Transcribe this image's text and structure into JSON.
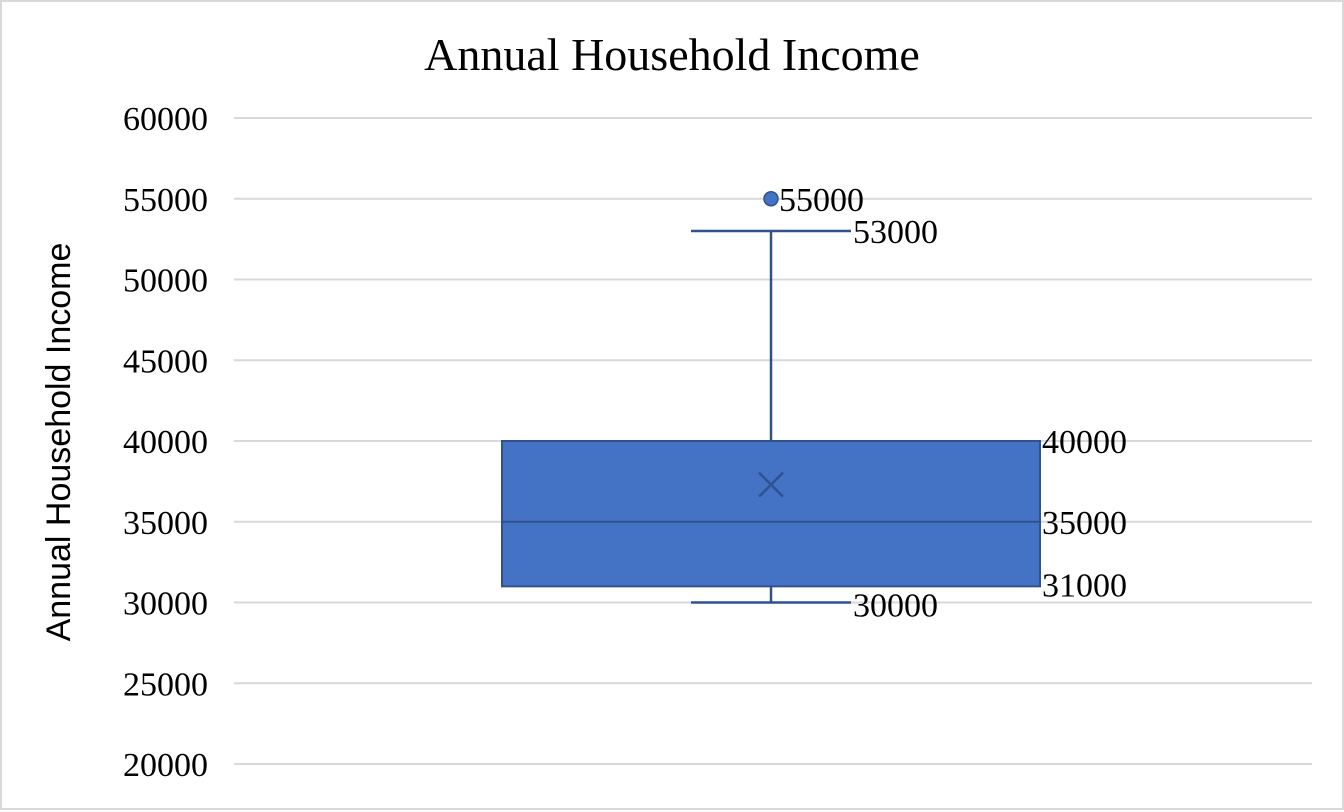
{
  "chart_data": {
    "type": "boxplot",
    "title": "Annual Household Income",
    "xlabel": "",
    "ylabel": "Annual Household Income",
    "ylim": [
      20000,
      60000
    ],
    "yticks": [
      20000,
      25000,
      30000,
      35000,
      40000,
      45000,
      50000,
      55000,
      60000
    ],
    "grid": true,
    "legend": "none",
    "series": [
      {
        "whisker_low": 30000,
        "q1": 31000,
        "median": 35000,
        "q3": 40000,
        "whisker_high": 53000,
        "mean": 37300,
        "outliers": [
          55000
        ],
        "color": "#4472c4",
        "edge_color": "#2f528f",
        "labels": {
          "whisker_low": "30000",
          "q1": "31000",
          "median": "35000",
          "q3": "40000",
          "whisker_high": "53000",
          "outlier": "55000"
        }
      }
    ],
    "colors": {
      "grid": "#d9d9d9",
      "frame": "#d9d9d9"
    }
  }
}
